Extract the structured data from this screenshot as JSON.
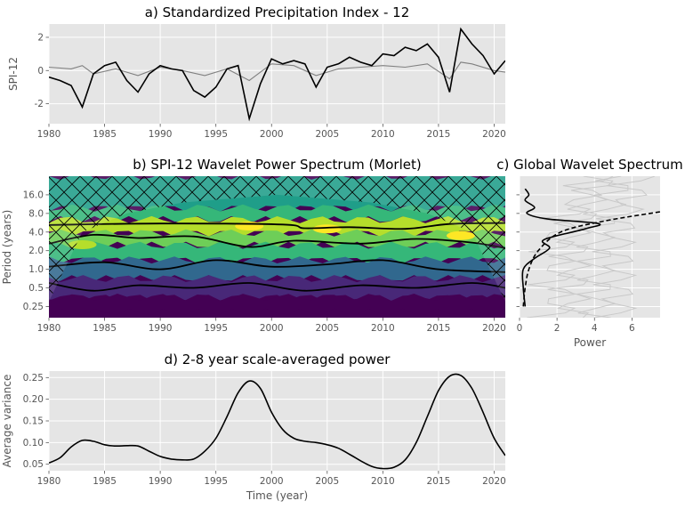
{
  "colors": {
    "panel_bg": "#e5e5e5",
    "grid": "#ffffff",
    "primary_line": "#000000",
    "secondary_line": "#808080",
    "viridis": [
      "#440154",
      "#482878",
      "#3e4989",
      "#31688e",
      "#26828e",
      "#1f9e89",
      "#35b779",
      "#6ece58",
      "#b5de2b",
      "#fde725"
    ]
  },
  "chart_data": [
    {
      "id": "a",
      "type": "line",
      "title": "a) Standardized Precipitation Index - 12",
      "ylabel": "SPI-12",
      "xlim": [
        1980,
        2021
      ],
      "ylim": [
        -3.2,
        2.8
      ],
      "x_ticks": [
        1980,
        1985,
        1990,
        1995,
        2000,
        2005,
        2010,
        2015,
        2020
      ],
      "y_ticks": [
        -2,
        0,
        2
      ],
      "grid": true,
      "series": [
        {
          "color": "#000000",
          "points": [
            [
              1980,
              -0.4
            ],
            [
              1981,
              -0.6
            ],
            [
              1982,
              -0.9
            ],
            [
              1983,
              -2.2
            ],
            [
              1984,
              -0.2
            ],
            [
              1985,
              0.3
            ],
            [
              1986,
              0.5
            ],
            [
              1987,
              -0.6
            ],
            [
              1988,
              -1.3
            ],
            [
              1989,
              -0.2
            ],
            [
              1990,
              0.3
            ],
            [
              1991,
              0.1
            ],
            [
              1992,
              0.0
            ],
            [
              1993,
              -1.2
            ],
            [
              1994,
              -1.6
            ],
            [
              1995,
              -1.0
            ],
            [
              1996,
              0.1
            ],
            [
              1997,
              0.3
            ],
            [
              1998,
              -2.9
            ],
            [
              1999,
              -0.8
            ],
            [
              2000,
              0.7
            ],
            [
              2001,
              0.4
            ],
            [
              2002,
              0.6
            ],
            [
              2003,
              0.4
            ],
            [
              2004,
              -1.0
            ],
            [
              2005,
              0.2
            ],
            [
              2006,
              0.4
            ],
            [
              2007,
              0.8
            ],
            [
              2008,
              0.5
            ],
            [
              2009,
              0.3
            ],
            [
              2010,
              1.0
            ],
            [
              2011,
              0.9
            ],
            [
              2012,
              1.4
            ],
            [
              2013,
              1.2
            ],
            [
              2014,
              1.6
            ],
            [
              2015,
              0.8
            ],
            [
              2016,
              -1.3
            ],
            [
              2017,
              2.5
            ],
            [
              2018,
              1.6
            ],
            [
              2019,
              0.9
            ],
            [
              2020,
              -0.2
            ],
            [
              2021,
              0.6
            ]
          ]
        },
        {
          "color": "#808080",
          "points": [
            [
              1980,
              0.2
            ],
            [
              1982,
              0.1
            ],
            [
              1983,
              0.3
            ],
            [
              1984,
              -0.2
            ],
            [
              1986,
              0.1
            ],
            [
              1988,
              -0.3
            ],
            [
              1990,
              0.2
            ],
            [
              1992,
              0.0
            ],
            [
              1994,
              -0.3
            ],
            [
              1996,
              0.1
            ],
            [
              1998,
              -0.6
            ],
            [
              1999,
              -0.1
            ],
            [
              2000,
              0.4
            ],
            [
              2002,
              0.3
            ],
            [
              2004,
              -0.3
            ],
            [
              2006,
              0.1
            ],
            [
              2008,
              0.2
            ],
            [
              2010,
              0.3
            ],
            [
              2012,
              0.2
            ],
            [
              2014,
              0.4
            ],
            [
              2016,
              -0.5
            ],
            [
              2017,
              0.5
            ],
            [
              2018,
              0.4
            ],
            [
              2020,
              0.0
            ],
            [
              2021,
              -0.1
            ]
          ]
        }
      ]
    },
    {
      "id": "b",
      "type": "heatmap",
      "title": "b) SPI-12 Wavelet Power Spectrum (Morlet)",
      "ylabel": "Period (years)",
      "xlim": [
        1980,
        2021
      ],
      "ylim_log2": [
        -2.6,
        5
      ],
      "x_ticks": [
        1980,
        1985,
        1990,
        1995,
        2000,
        2005,
        2010,
        2015,
        2020
      ],
      "y_ticks": [
        "0.25",
        "0.5",
        "1.0",
        "2.0",
        "4.0",
        "8.0",
        "16.0"
      ],
      "y_tick_values": [
        0.25,
        0.5,
        1,
        2,
        4,
        8,
        16
      ],
      "significance_contours": true,
      "cone_of_influence": "hatched",
      "bands": [
        {
          "period": 12,
          "level": 5
        },
        {
          "period": 8,
          "level": 6
        },
        {
          "period": 5,
          "level": 8
        },
        {
          "period": 3,
          "level": 7
        },
        {
          "period": 2,
          "level": 6
        },
        {
          "period": 1,
          "level": 3
        },
        {
          "period": 0.5,
          "level": 1
        },
        {
          "period": 0.25,
          "level": 0
        }
      ],
      "hotspots": [
        {
          "year": 1998,
          "period": 5,
          "level": 9
        },
        {
          "year": 2017,
          "period": 3.5,
          "level": 9
        },
        {
          "year": 1983,
          "period": 2.5,
          "level": 8
        },
        {
          "year": 2005,
          "period": 4.5,
          "level": 9
        }
      ]
    },
    {
      "id": "c",
      "type": "line",
      "title": "c) Global Wavelet Spectrum",
      "xlabel": "Power",
      "xlim": [
        0,
        7.5
      ],
      "x_ticks": [
        0,
        2,
        4,
        6
      ],
      "grid": true,
      "series": [
        {
          "style": "solid",
          "color": "#000000",
          "points": [
            [
              0.3,
              0.25
            ],
            [
              0.2,
              0.5
            ],
            [
              0.2,
              1
            ],
            [
              0.8,
              1.5
            ],
            [
              1.6,
              2.2
            ],
            [
              1.3,
              3
            ],
            [
              3.5,
              4.5
            ],
            [
              4.2,
              5.5
            ],
            [
              1.5,
              6.5
            ],
            [
              0.4,
              8
            ],
            [
              0.8,
              10
            ],
            [
              0.3,
              13
            ],
            [
              0.5,
              16
            ],
            [
              0.3,
              20
            ]
          ]
        },
        {
          "style": "dashed",
          "color": "#000000",
          "points": [
            [
              0.2,
              0.25
            ],
            [
              0.3,
              0.5
            ],
            [
              0.5,
              1
            ],
            [
              1.0,
              2
            ],
            [
              2.2,
              4
            ],
            [
              4.5,
              6
            ],
            [
              7.5,
              8.5
            ]
          ]
        }
      ]
    },
    {
      "id": "d",
      "type": "line",
      "title": "d) 2-8 year scale-averaged power",
      "xlabel": "Time (year)",
      "ylabel": "Average variance",
      "xlim": [
        1980,
        2021
      ],
      "ylim": [
        0.035,
        0.265
      ],
      "x_ticks": [
        1980,
        1985,
        1990,
        1995,
        2000,
        2005,
        2010,
        2015,
        2020
      ],
      "y_ticks": [
        0.05,
        0.1,
        0.15,
        0.2,
        0.25
      ],
      "grid": true,
      "series": [
        {
          "color": "#000000",
          "points": [
            [
              1980,
              0.053
            ],
            [
              1981,
              0.065
            ],
            [
              1982,
              0.09
            ],
            [
              1983,
              0.105
            ],
            [
              1984,
              0.103
            ],
            [
              1985,
              0.095
            ],
            [
              1986,
              0.092
            ],
            [
              1987,
              0.093
            ],
            [
              1988,
              0.092
            ],
            [
              1989,
              0.08
            ],
            [
              1990,
              0.068
            ],
            [
              1991,
              0.062
            ],
            [
              1992,
              0.06
            ],
            [
              1993,
              0.062
            ],
            [
              1994,
              0.08
            ],
            [
              1995,
              0.11
            ],
            [
              1996,
              0.16
            ],
            [
              1997,
              0.215
            ],
            [
              1998,
              0.242
            ],
            [
              1999,
              0.225
            ],
            [
              2000,
              0.17
            ],
            [
              2001,
              0.13
            ],
            [
              2002,
              0.11
            ],
            [
              2003,
              0.103
            ],
            [
              2004,
              0.1
            ],
            [
              2005,
              0.095
            ],
            [
              2006,
              0.087
            ],
            [
              2007,
              0.073
            ],
            [
              2008,
              0.058
            ],
            [
              2009,
              0.045
            ],
            [
              2010,
              0.04
            ],
            [
              2011,
              0.043
            ],
            [
              2012,
              0.06
            ],
            [
              2013,
              0.1
            ],
            [
              2014,
              0.16
            ],
            [
              2015,
              0.22
            ],
            [
              2016,
              0.253
            ],
            [
              2017,
              0.255
            ],
            [
              2018,
              0.225
            ],
            [
              2019,
              0.17
            ],
            [
              2020,
              0.11
            ],
            [
              2021,
              0.07
            ]
          ]
        }
      ]
    }
  ]
}
